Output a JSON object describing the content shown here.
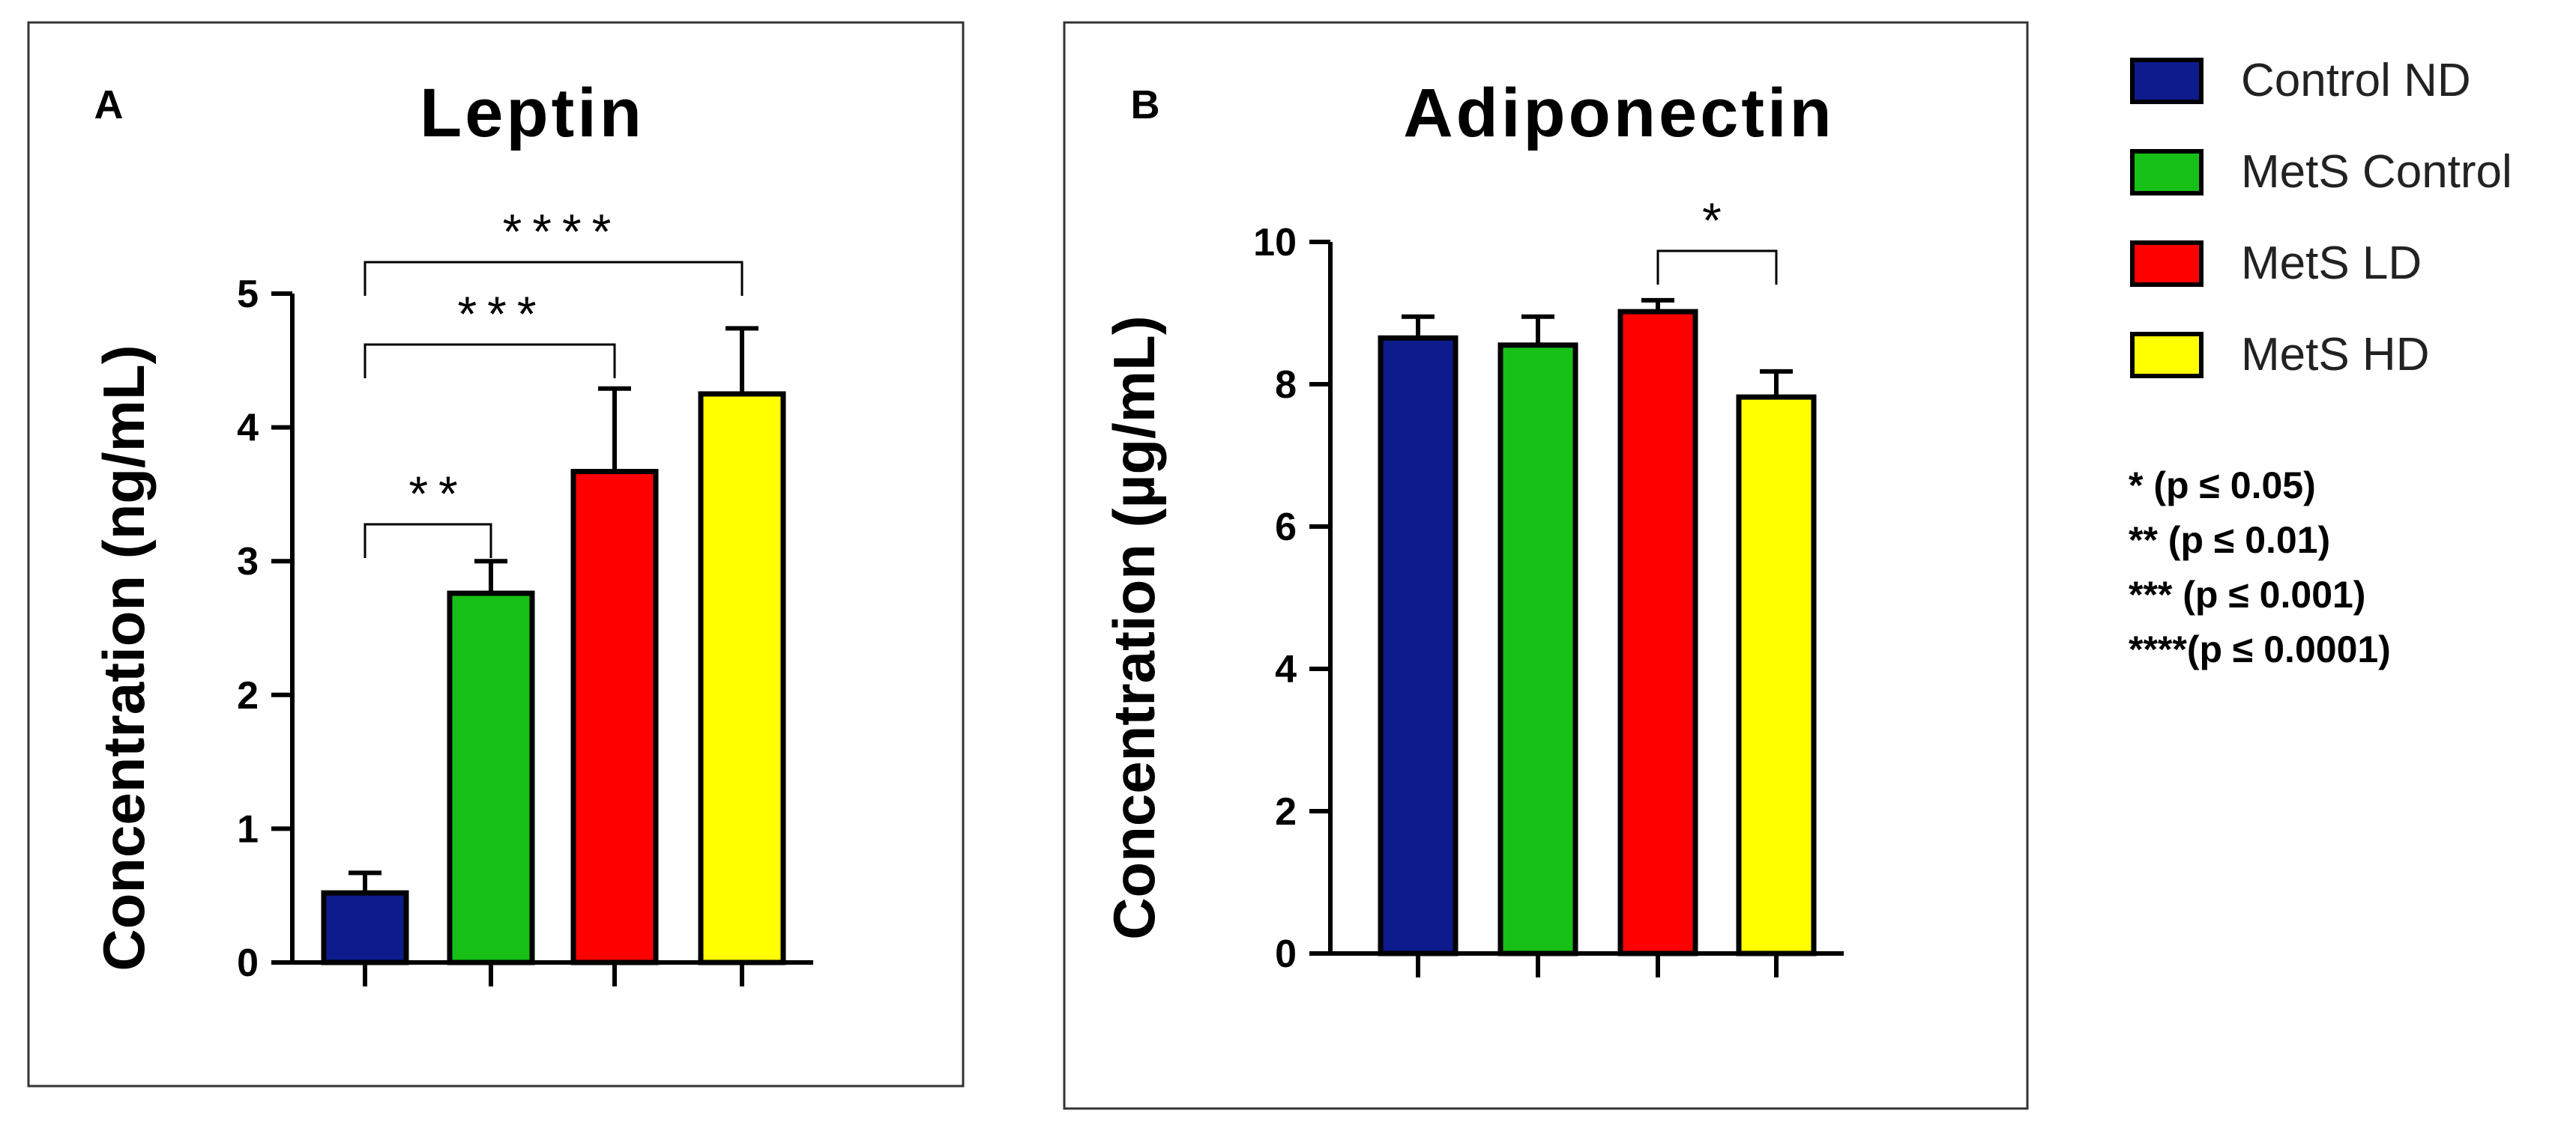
{
  "chart_data": [
    {
      "type": "bar",
      "panel_letter": "A",
      "title": "Leptin",
      "xlabel": "",
      "ylabel": "Concentration (ng/mL)",
      "ylim": [
        0,
        5
      ],
      "yticks": [
        "0",
        "1",
        "2",
        "3",
        "4",
        "5"
      ],
      "grid": false,
      "categories": [
        "Control ND",
        "MetS Control",
        "MetS LD",
        "MetS HD"
      ],
      "values": [
        0.52,
        2.76,
        3.67,
        4.25
      ],
      "errors": [
        0.15,
        0.24,
        0.62,
        0.49
      ],
      "significance": [
        {
          "from": 0,
          "to": 1,
          "label": "**"
        },
        {
          "from": 0,
          "to": 2,
          "label": "***"
        },
        {
          "from": 0,
          "to": 3,
          "label": "****"
        }
      ]
    },
    {
      "type": "bar",
      "panel_letter": "B",
      "title": "Adiponectin",
      "xlabel": "",
      "ylabel": "Concentration (µg/mL)",
      "ylim": [
        0,
        10
      ],
      "yticks": [
        "0",
        "2",
        "4",
        "6",
        "8",
        "10"
      ],
      "grid": false,
      "categories": [
        "Control ND",
        "MetS Control",
        "MetS LD",
        "MetS HD"
      ],
      "values": [
        8.65,
        8.55,
        9.02,
        7.82
      ],
      "errors": [
        0.3,
        0.4,
        0.16,
        0.36
      ],
      "significance": [
        {
          "from": 2,
          "to": 3,
          "label": "*"
        }
      ]
    }
  ],
  "legend": {
    "placement": "right",
    "items": [
      {
        "label": "Control ND",
        "color": "#0d1b8c"
      },
      {
        "label": "MetS Control",
        "color": "#16c016"
      },
      {
        "label": "MetS LD",
        "color": "#ff0000"
      },
      {
        "label": "MetS HD",
        "color": "#ffff00"
      }
    ]
  },
  "significance_key": [
    "* (p ≤ 0.05)",
    "** (p ≤ 0.01)",
    "*** (p ≤ 0.001)",
    "****(p ≤ 0.0001)"
  ]
}
